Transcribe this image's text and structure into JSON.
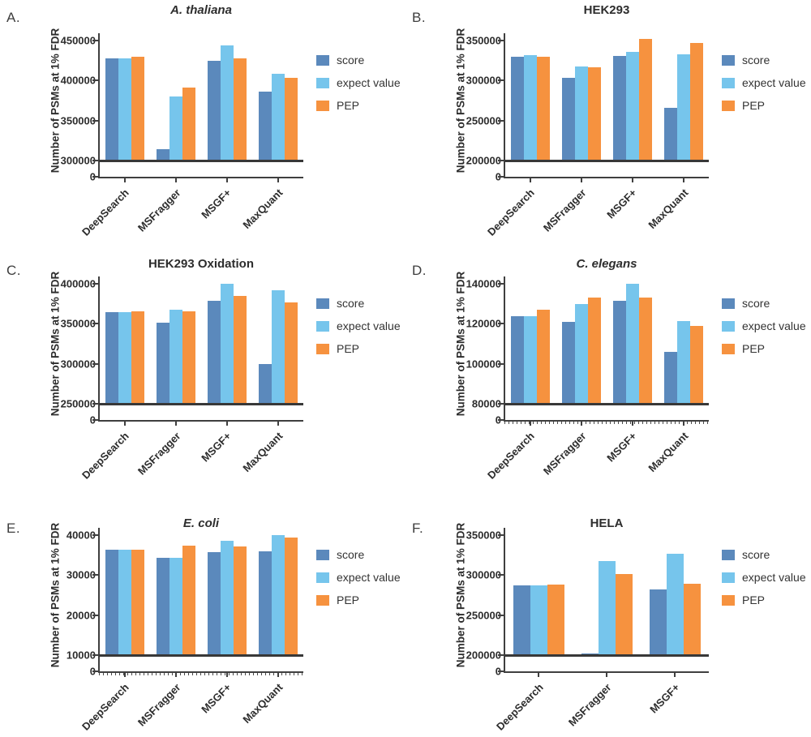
{
  "colors": {
    "score": "#5b89bc",
    "expect_value": "#76c5ec",
    "pep": "#f6923f",
    "axis": "#3f3f3f",
    "text": "#2d2d2d"
  },
  "zero_tick_label": "0",
  "chart_data": [
    {
      "panel_label": "A.",
      "type": "bar",
      "title": "A. thaliana",
      "title_italic": true,
      "ylabel": "Number of PSMs at 1% FDR",
      "ylim": [
        300000,
        450000
      ],
      "yticks": [
        300000,
        350000,
        400000,
        450000
      ],
      "categories": [
        "DeepSearch",
        "MSFragger",
        "MSGF+",
        "MaxQuant"
      ],
      "series": [
        {
          "name": "score",
          "color_key": "score",
          "values": [
            428000,
            314000,
            425000,
            386000
          ]
        },
        {
          "name": "expect value",
          "color_key": "expect_value",
          "values": [
            428000,
            380000,
            444000,
            408000
          ]
        },
        {
          "name": "PEP",
          "color_key": "pep",
          "values": [
            430000,
            391000,
            428000,
            403000
          ]
        }
      ],
      "legend_position": "right",
      "x_minor_ticks": false
    },
    {
      "panel_label": "B.",
      "type": "bar",
      "title": "HEK293",
      "title_italic": false,
      "ylabel": "Number of PSMs at 1% FDR",
      "ylim": [
        200000,
        350000
      ],
      "yticks": [
        200000,
        250000,
        300000,
        350000
      ],
      "categories": [
        "DeepSearch",
        "MSFragger",
        "MSGF+",
        "MaxQuant"
      ],
      "series": [
        {
          "name": "score",
          "color_key": "score",
          "values": [
            330000,
            303000,
            331000,
            266000
          ]
        },
        {
          "name": "expect value",
          "color_key": "expect_value",
          "values": [
            332000,
            318000,
            336000,
            333000
          ]
        },
        {
          "name": "PEP",
          "color_key": "pep",
          "values": [
            330000,
            317000,
            352000,
            347000
          ]
        }
      ],
      "legend_position": "right",
      "x_minor_ticks": false
    },
    {
      "panel_label": "C.",
      "type": "bar",
      "title": "HEK293 Oxidation",
      "title_italic": false,
      "ylabel": "Number of PSMs at 1% FDR",
      "ylim": [
        250000,
        400000
      ],
      "yticks": [
        250000,
        300000,
        350000,
        400000
      ],
      "categories": [
        "DeepSearch",
        "MSFragger",
        "MSGF+",
        "MaxQuant"
      ],
      "series": [
        {
          "name": "score",
          "color_key": "score",
          "values": [
            365000,
            351000,
            379000,
            300000
          ]
        },
        {
          "name": "expect value",
          "color_key": "expect_value",
          "values": [
            364500,
            368000,
            400000,
            392000
          ]
        },
        {
          "name": "PEP",
          "color_key": "pep",
          "values": [
            366000,
            366000,
            385000,
            377000
          ]
        }
      ],
      "legend_position": "right",
      "x_minor_ticks": false
    },
    {
      "panel_label": "D.",
      "type": "bar",
      "title": "C. elegans",
      "title_italic": true,
      "ylabel": "Number of PSMs at 1% FDR",
      "ylim": [
        80000,
        140000
      ],
      "yticks": [
        80000,
        100000,
        120000,
        140000
      ],
      "categories": [
        "DeepSearch",
        "MSFragger",
        "MSGF+",
        "MaxQuant"
      ],
      "series": [
        {
          "name": "score",
          "color_key": "score",
          "values": [
            124000,
            121000,
            131500,
            106000
          ]
        },
        {
          "name": "expect value",
          "color_key": "expect_value",
          "values": [
            124000,
            130000,
            140000,
            121500
          ]
        },
        {
          "name": "PEP",
          "color_key": "pep",
          "values": [
            127000,
            133000,
            133000,
            119000
          ]
        }
      ],
      "legend_position": "right",
      "x_minor_ticks": true
    },
    {
      "panel_label": "E.",
      "type": "bar",
      "title": "E. coli",
      "title_italic": true,
      "ylabel": "Number of PSMs at 1% FDR",
      "ylim": [
        10000,
        40000
      ],
      "yticks": [
        10000,
        20000,
        30000,
        40000
      ],
      "categories": [
        "DeepSearch",
        "MSFragger",
        "MSGF+",
        "MaxQuant"
      ],
      "series": [
        {
          "name": "score",
          "color_key": "score",
          "values": [
            36400,
            34400,
            35700,
            36000
          ]
        },
        {
          "name": "expect value",
          "color_key": "expect_value",
          "values": [
            36400,
            34400,
            38500,
            40000
          ]
        },
        {
          "name": "PEP",
          "color_key": "pep",
          "values": [
            36400,
            37300,
            37100,
            39500
          ]
        }
      ],
      "legend_position": "right",
      "x_minor_ticks": true
    },
    {
      "panel_label": "F.",
      "type": "bar",
      "title": "HELA",
      "title_italic": false,
      "ylabel": "Number of PSMs at 1% FDR",
      "ylim": [
        200000,
        350000
      ],
      "yticks": [
        200000,
        250000,
        300000,
        350000
      ],
      "categories": [
        "DeepSearch",
        "MSFragger",
        "MSGF+"
      ],
      "series": [
        {
          "name": "score",
          "color_key": "score",
          "values": [
            287000,
            202000,
            282000
          ]
        },
        {
          "name": "expect value",
          "color_key": "expect_value",
          "values": [
            287000,
            318000,
            327000
          ]
        },
        {
          "name": "PEP",
          "color_key": "pep",
          "values": [
            288000,
            301000,
            289000
          ]
        }
      ],
      "legend_position": "right",
      "x_minor_ticks": false
    }
  ]
}
